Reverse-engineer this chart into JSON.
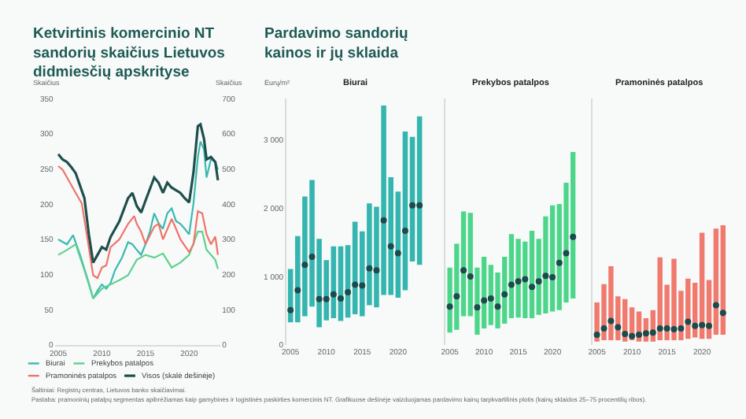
{
  "chart_data": [
    {
      "type": "line",
      "title": "Ketvirtinis komercinio NT sandorių skaičius Lietuvos didmiesčių apskrityse",
      "ylabel": "Skaičius",
      "y2label": "Skaičius",
      "xlim": [
        2004.6,
        2023.6
      ],
      "xticks": [
        2005,
        2010,
        2015,
        2020
      ],
      "ylim": [
        0,
        350
      ],
      "yticks": [
        0,
        50,
        100,
        150,
        200,
        250,
        300,
        350
      ],
      "y2lim": [
        0,
        700
      ],
      "y2ticks": [
        0,
        100,
        200,
        300,
        400,
        500,
        600,
        700
      ],
      "legend": "bottom",
      "grid": false,
      "annotations": [
        "Šaltiniai: Registrų centras, Lietuvos banko skaičiavimai.",
        "Pastaba: pramoninių patalpų segmentas apibrėžiamas kaip gamybinės ir logistinės paskirties komercinis NT. Grafikuose dešinėje vaizduojamas pardavimo kainų tarpkvartilinis plotis (kainų sklaidos 25–75 procentilių ribos)."
      ],
      "series": [
        {
          "name": "Biurai",
          "color": "#3bb8b0",
          "x": [
            2005,
            2006,
            2006.7,
            2007.5,
            2008.5,
            2009,
            2009.5,
            2010,
            2010.5,
            2011,
            2011.5,
            2012.3,
            2013,
            2013.5,
            2014,
            2014.5,
            2015,
            2015.5,
            2016,
            2016.5,
            2017,
            2017.5,
            2018,
            2018.5,
            2019,
            2019.5,
            2020,
            2020.5,
            2021,
            2021.3,
            2021.7,
            2022,
            2022.5,
            2023,
            2023.3
          ],
          "values": [
            150,
            143,
            156,
            128,
            88,
            66,
            77,
            86,
            80,
            88,
            106,
            124,
            146,
            143,
            135,
            128,
            143,
            161,
            187,
            173,
            165,
            187,
            194,
            176,
            172,
            165,
            157,
            201,
            267,
            289,
            278,
            238,
            264,
            260,
            249
          ]
        },
        {
          "name": "Prekybos patalpos",
          "color": "#5fd08f",
          "x": [
            2005,
            2006,
            2007,
            2008,
            2009,
            2010,
            2011,
            2012,
            2013,
            2014,
            2015,
            2016,
            2017,
            2018,
            2019,
            2020,
            2021,
            2021.5,
            2022,
            2023,
            2023.3
          ],
          "values": [
            128,
            135,
            143,
            106,
            66,
            80,
            86,
            92,
            99,
            121,
            128,
            124,
            130,
            110,
            117,
            128,
            161,
            161,
            135,
            121,
            108
          ]
        },
        {
          "name": "Pramoninės patalpos",
          "color": "#f0736a",
          "x": [
            2005,
            2005.5,
            2006,
            2007,
            2007.7,
            2008.5,
            2009,
            2009.5,
            2010,
            2010.5,
            2011,
            2012,
            2013,
            2013.7,
            2014,
            2014.5,
            2015,
            2016,
            2016.5,
            2017,
            2018,
            2018.5,
            2019,
            2020,
            2020.5,
            2021,
            2021.5,
            2022,
            2022.5,
            2023,
            2023.3
          ],
          "values": [
            254,
            249,
            238,
            216,
            201,
            139,
            99,
            95,
            110,
            113,
            139,
            150,
            172,
            183,
            172,
            161,
            143,
            168,
            172,
            150,
            179,
            165,
            150,
            132,
            143,
            190,
            187,
            157,
            143,
            154,
            128
          ]
        },
        {
          "name": "Visos (skalė dešinėje)",
          "color": "#1f4f4c",
          "axis": "y2",
          "x": [
            2005,
            2005.5,
            2006,
            2006.5,
            2007,
            2008,
            2008.5,
            2009,
            2009.5,
            2010,
            2010.5,
            2011,
            2012,
            2013,
            2013.5,
            2014,
            2014.5,
            2015,
            2016,
            2016.5,
            2017,
            2017.5,
            2018,
            2019,
            2019.5,
            2020,
            2020.5,
            2021,
            2021.3,
            2021.7,
            2022,
            2022.5,
            2023,
            2023.3
          ],
          "values": [
            542,
            527,
            520,
            505,
            488,
            417,
            315,
            234,
            256,
            278,
            271,
            307,
            351,
            417,
            432,
            395,
            376,
            410,
            476,
            461,
            432,
            461,
            447,
            432,
            417,
            405,
            490,
            622,
            627,
            586,
            527,
            534,
            520,
            468
          ]
        }
      ]
    },
    {
      "type": "bar",
      "title": "Pardavimo sandorių kainos ir jų sklaida",
      "subtitle": "Biurai",
      "ylabel": "Eurų/m²",
      "ylim": [
        0,
        3600
      ],
      "yticks": [
        0,
        {
          "value": 1000,
          "label": "1 000"
        },
        {
          "value": 2000,
          "label": "2 000"
        },
        {
          "value": 3000,
          "label": "3 000"
        }
      ],
      "marker": "circle",
      "grid": false,
      "categories": [
        "2005",
        null,
        null,
        null,
        null,
        "2010",
        null,
        null,
        null,
        null,
        "2015",
        null,
        null,
        null,
        null,
        "2020",
        null,
        null,
        null
      ],
      "series": [
        {
          "type": "bar",
          "color": "#35b5b0",
          "base": [
            330,
            330,
            420,
            560,
            260,
            360,
            390,
            350,
            400,
            450,
            420,
            580,
            550,
            730,
            730,
            690,
            800,
            1220,
            1170
          ],
          "values": [
            780,
            1260,
            1750,
            1850,
            1290,
            880,
            1050,
            1090,
            1060,
            1350,
            1240,
            1490,
            1470,
            2770,
            1720,
            1550,
            2320,
            1820,
            2170
          ]
        },
        {
          "type": "scatter",
          "color": "#1b4b4b",
          "values": [
            510,
            800,
            1170,
            1290,
            670,
            670,
            740,
            680,
            770,
            880,
            870,
            1120,
            1090,
            1820,
            1440,
            1340,
            1670,
            2040,
            2040
          ]
        }
      ]
    },
    {
      "type": "bar",
      "title": "Prekybos patalpos",
      "ylim": [
        0,
        3600
      ],
      "tick_labels": "x",
      "marker": "circle",
      "grid": false,
      "categories": [
        "2005",
        null,
        null,
        null,
        null,
        "2010",
        null,
        null,
        null,
        null,
        "2015",
        null,
        null,
        null,
        null,
        "2020",
        null,
        null,
        null
      ],
      "series": [
        {
          "type": "bar",
          "color": "#4cd68a",
          "base": [
            180,
            220,
            420,
            420,
            150,
            240,
            290,
            240,
            310,
            390,
            400,
            390,
            390,
            440,
            460,
            490,
            510,
            620,
            680
          ],
          "values": [
            950,
            1260,
            1530,
            1510,
            980,
            1050,
            880,
            820,
            980,
            1230,
            1150,
            1120,
            1280,
            1110,
            1420,
            1550,
            1550,
            1750,
            2140
          ]
        },
        {
          "type": "scatter",
          "color": "#1b4b4b",
          "values": [
            560,
            710,
            1090,
            1000,
            550,
            650,
            680,
            560,
            740,
            880,
            930,
            960,
            850,
            930,
            1010,
            990,
            1200,
            1340,
            1580
          ]
        }
      ]
    },
    {
      "type": "bar",
      "title": "Pramoninės patalpos",
      "ylim": [
        0,
        3600
      ],
      "tick_labels": "x",
      "marker": "circle",
      "grid": false,
      "categories": [
        "2005",
        null,
        null,
        null,
        null,
        "2010",
        null,
        null,
        null,
        null,
        "2015",
        null,
        null,
        null,
        null,
        "2020",
        null,
        null,
        null
      ],
      "series": [
        {
          "type": "bar",
          "color": "#f07a6e",
          "base": [
            50,
            70,
            70,
            70,
            50,
            70,
            50,
            50,
            50,
            70,
            70,
            70,
            70,
            90,
            110,
            90,
            90,
            150,
            150
          ],
          "values": [
            570,
            820,
            1080,
            640,
            620,
            480,
            440,
            340,
            460,
            1210,
            810,
            1190,
            720,
            880,
            800,
            1550,
            860,
            1550,
            1600
          ]
        },
        {
          "type": "scatter",
          "color": "#1b4b4b",
          "values": [
            150,
            240,
            350,
            260,
            160,
            130,
            150,
            170,
            180,
            240,
            240,
            230,
            240,
            340,
            280,
            290,
            280,
            580,
            470
          ]
        }
      ]
    }
  ]
}
